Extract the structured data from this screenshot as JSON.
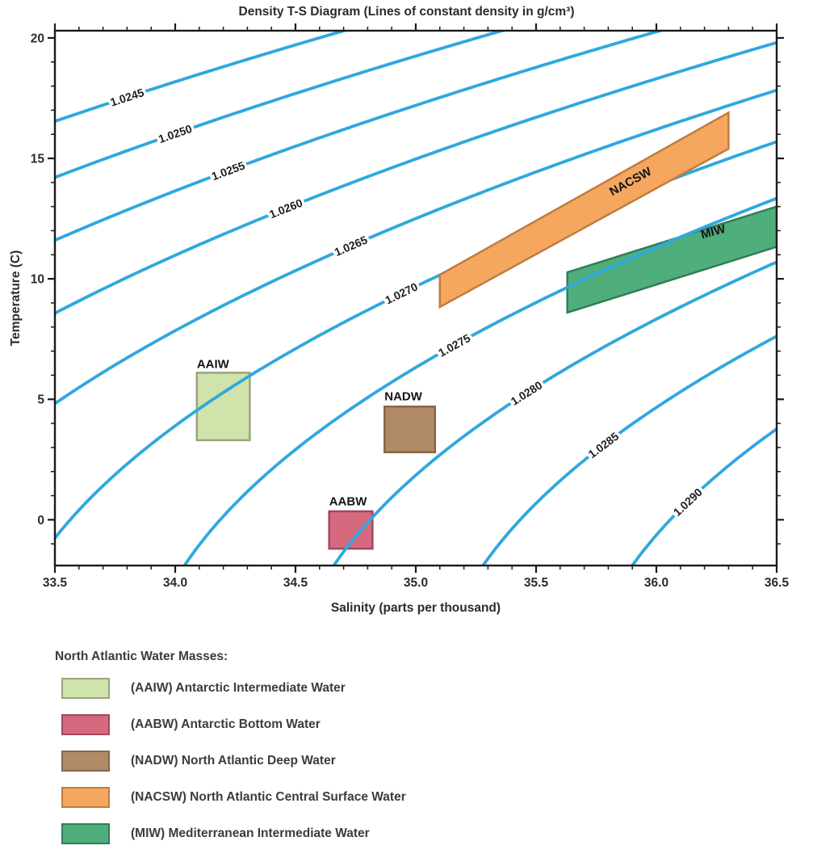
{
  "chart_data": {
    "type": "line",
    "title": "Density T-S Diagram (Lines of constant density in g/cm³)",
    "xlabel": "Salinity (parts per thousand)",
    "ylabel": "Temperature (C)",
    "xlim": [
      33.5,
      36.5
    ],
    "ylim": [
      -1.9,
      20.3
    ],
    "x_ticks": [
      {
        "value": 33.5,
        "label": "33.5"
      },
      {
        "value": 34.0,
        "label": "34.0"
      },
      {
        "value": 34.5,
        "label": "34.5"
      },
      {
        "value": 35.0,
        "label": "35.0"
      },
      {
        "value": 35.5,
        "label": "35.5"
      },
      {
        "value": 36.0,
        "label": "36.0"
      },
      {
        "value": 36.5,
        "label": "36.5"
      }
    ],
    "x_minor_step": 0.1,
    "y_ticks": [
      {
        "value": 0,
        "label": "0"
      },
      {
        "value": 5,
        "label": "5"
      },
      {
        "value": 10,
        "label": "10"
      },
      {
        "value": 15,
        "label": "15"
      },
      {
        "value": 20,
        "label": "20"
      }
    ],
    "y_minor_step": 1,
    "isopycnals": {
      "color": "#2fa8dd",
      "units": "g/cm³",
      "sigma_t_formula": "sigma_t = 28.152 - 0.0735*T - 0.00469*T^2 + (0.802 - 0.002*T)*(S - 35)",
      "lines": [
        {
          "label": "1.0245",
          "sigma_t": 24.5,
          "label_S": 33.8
        },
        {
          "label": "1.0250",
          "sigma_t": 25.0,
          "label_S": 34.0
        },
        {
          "label": "1.0255",
          "sigma_t": 25.5,
          "label_S": 34.22
        },
        {
          "label": "1.0260",
          "sigma_t": 26.0,
          "label_S": 34.46
        },
        {
          "label": "1.0265",
          "sigma_t": 26.5,
          "label_S": 34.73
        },
        {
          "label": "1.0270",
          "sigma_t": 27.0,
          "label_S": 34.94
        },
        {
          "label": "1.0275",
          "sigma_t": 27.5,
          "label_S": 35.16
        },
        {
          "label": "1.0280",
          "sigma_t": 28.0,
          "label_S": 35.46
        },
        {
          "label": "1.0285",
          "sigma_t": 28.5,
          "label_S": 35.78
        },
        {
          "label": "1.0290",
          "sigma_t": 29.0,
          "label_S": 36.13
        }
      ]
    },
    "water_masses": [
      {
        "id": "AAIW",
        "label": "AAIW",
        "points": [
          [
            34.09,
            6.1
          ],
          [
            34.31,
            6.1
          ],
          [
            34.31,
            3.3
          ],
          [
            34.09,
            3.3
          ]
        ],
        "fill": "#cfe3ab",
        "stroke": "#97a57d",
        "label_S": 34.09,
        "label_T": 6.3,
        "label_rotation": 0,
        "label_anchor": "start",
        "above_curves": false
      },
      {
        "id": "AABW",
        "label": "AABW",
        "points": [
          [
            34.64,
            0.35
          ],
          [
            34.82,
            0.35
          ],
          [
            34.82,
            -1.2
          ],
          [
            34.64,
            -1.2
          ]
        ],
        "fill": "#d5697e",
        "stroke": "#a3475c",
        "label_S": 34.64,
        "label_T": 0.6,
        "label_rotation": 0,
        "label_anchor": "start",
        "above_curves": false
      },
      {
        "id": "NADW",
        "label": "NADW",
        "points": [
          [
            34.87,
            4.7
          ],
          [
            35.08,
            4.7
          ],
          [
            35.08,
            2.8
          ],
          [
            34.87,
            2.8
          ]
        ],
        "fill": "#b18b68",
        "stroke": "#85664a",
        "label_S": 34.87,
        "label_T": 4.95,
        "label_rotation": 0,
        "label_anchor": "start",
        "above_curves": false
      },
      {
        "id": "NACSW",
        "label": "NACSW",
        "points": [
          [
            35.1,
            10.17
          ],
          [
            36.3,
            16.9
          ],
          [
            36.3,
            15.4
          ],
          [
            35.1,
            8.83
          ]
        ],
        "fill": "#f5a760",
        "stroke": "#c07c3e",
        "label_S": 35.9,
        "label_T": 13.9,
        "label_rotation": -29,
        "label_anchor": "middle",
        "above_curves": true
      },
      {
        "id": "MIW",
        "label": "MIW",
        "points": [
          [
            35.63,
            10.27
          ],
          [
            36.5,
            13.0
          ],
          [
            36.5,
            11.33
          ],
          [
            35.63,
            8.6
          ]
        ],
        "fill": "#50ae7c",
        "stroke": "#2f7e55",
        "label_S": 36.24,
        "label_T": 11.8,
        "label_rotation": -15,
        "label_anchor": "middle",
        "above_curves": false
      }
    ]
  },
  "legend": {
    "title": "North Atlantic Water Masses:",
    "items": [
      {
        "id": "AAIW",
        "label": "(AAIW) Antarctic Intermediate Water"
      },
      {
        "id": "AABW",
        "label": "(AABW) Antarctic Bottom Water"
      },
      {
        "id": "NADW",
        "label": "(NADW) North Atlantic Deep Water"
      },
      {
        "id": "NACSW",
        "label": "(NACSW) North Atlantic Central Surface Water"
      },
      {
        "id": "MIW",
        "label": "(MIW) Mediterranean Intermediate Water"
      }
    ]
  }
}
